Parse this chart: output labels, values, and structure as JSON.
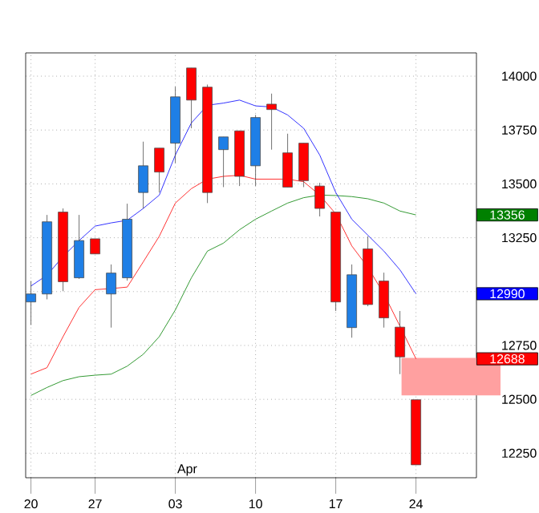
{
  "chart_data": {
    "type": "candlestick",
    "categories": [
      "20",
      null,
      null,
      null,
      "27",
      null,
      null,
      null,
      null,
      "03",
      null,
      null,
      null,
      null,
      "10",
      null,
      null,
      null,
      null,
      "17",
      null,
      null,
      null,
      null,
      "24"
    ],
    "ohlc": [
      [
        12952,
        13049,
        12845,
        12989
      ],
      [
        12989,
        13356,
        12964,
        13324
      ],
      [
        13369,
        13386,
        13002,
        13046
      ],
      [
        13064,
        13356,
        13059,
        13237
      ],
      [
        13245,
        13245,
        13175,
        13175
      ],
      [
        12989,
        13126,
        12833,
        13086
      ],
      [
        13064,
        13408,
        13051,
        13336
      ],
      [
        13460,
        13696,
        13386,
        13584
      ],
      [
        13666,
        13666,
        13460,
        13555
      ],
      [
        13689,
        13951,
        13597,
        13904
      ],
      [
        14038,
        14038,
        13758,
        13889
      ],
      [
        13949,
        13961,
        13411,
        13460
      ],
      [
        13659,
        13718,
        13485,
        13718
      ],
      [
        13746,
        13746,
        13490,
        13535
      ],
      [
        13584,
        13820,
        13490,
        13808
      ],
      [
        13870,
        13919,
        13659,
        13845
      ],
      [
        13644,
        13733,
        13485,
        13485
      ],
      [
        13689,
        13689,
        13485,
        13515
      ],
      [
        13490,
        13505,
        13349,
        13386
      ],
      [
        13369,
        13369,
        12910,
        12952
      ],
      [
        12833,
        13126,
        12786,
        13078
      ],
      [
        13198,
        13257,
        12932,
        12940
      ],
      [
        13049,
        13088,
        12833,
        12878
      ],
      [
        12835,
        12910,
        12617,
        12697
      ],
      [
        12498,
        12498,
        12196,
        12196
      ]
    ],
    "colors": [
      "#1f7fe6",
      "#1f7fe6",
      "#ff0000",
      "#1f7fe6",
      "#ff0000",
      "#1f7fe6",
      "#1f7fe6",
      "#1f7fe6",
      "#ff0000",
      "#1f7fe6",
      "#ff0000",
      "#ff0000",
      "#1f7fe6",
      "#ff0000",
      "#1f7fe6",
      "#ff0000",
      "#ff0000",
      "#ff0000",
      "#ff0000",
      "#ff0000",
      "#1f7fe6",
      "#ff0000",
      "#ff0000",
      "#ff0000",
      "#ff0000"
    ],
    "series": [
      {
        "type": "line",
        "color": "#008000",
        "values": [
          12518,
          12555,
          12587,
          12605,
          12612,
          12617,
          12654,
          12709,
          12791,
          12915,
          13064,
          13188,
          13225,
          13287,
          13336,
          13374,
          13411,
          13436,
          13448,
          13446,
          13441,
          13431,
          13411,
          13374,
          13356
        ]
      },
      {
        "type": "line",
        "color": "#0000ff",
        "values": [
          13026,
          13076,
          13163,
          13237,
          13304,
          13319,
          13331,
          13386,
          13448,
          13634,
          13783,
          13865,
          13875,
          13889,
          13862,
          13857,
          13820,
          13758,
          13634,
          13460,
          13336,
          13262,
          13188,
          13101,
          12990
        ]
      },
      {
        "type": "line",
        "color": "#ff0000",
        "values": [
          12617,
          12647,
          12791,
          12927,
          13009,
          13014,
          13021,
          13138,
          13257,
          13411,
          13478,
          13522,
          13535,
          13540,
          13522,
          13522,
          13522,
          13510,
          13448,
          13361,
          13212,
          13113,
          12989,
          12840,
          12688
        ]
      }
    ],
    "ylim": [
      12136,
      14108
    ],
    "yticks": [
      12250,
      12500,
      12750,
      {
        "value": 13000,
        "label": null
      },
      13250,
      13500,
      13750,
      14000
    ],
    "grid": true,
    "marker": "none",
    "line_style": "solid",
    "bands": [
      {
        "axis": "y",
        "from": 12518,
        "to": 12692,
        "color": "#ffa0a0"
      }
    ],
    "annotations": [
      "13356",
      "12990",
      "12688",
      "Apr"
    ]
  }
}
